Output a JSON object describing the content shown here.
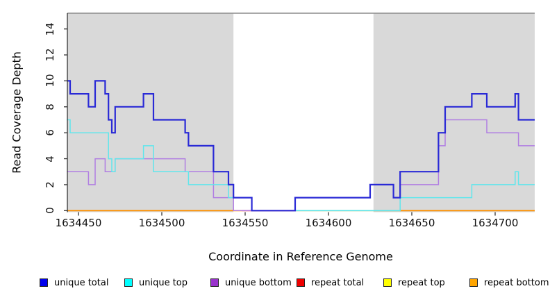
{
  "chart_data": {
    "type": "line",
    "subtype": "step",
    "title": "",
    "xlabel": "Coordinate in Reference Genome",
    "ylabel": "Read Coverage Depth",
    "xlim": [
      1634443,
      1634724
    ],
    "ylim": [
      0,
      15
    ],
    "x_ticks": [
      1634450,
      1634500,
      1634550,
      1634600,
      1634650,
      1634700
    ],
    "y_ticks": [
      0,
      2,
      4,
      6,
      8,
      10,
      12,
      14
    ],
    "grid": false,
    "legend_position": "bottom",
    "shaded_regions": [
      {
        "from": 1634443,
        "to": 1634543,
        "color": "#d9d9d9"
      },
      {
        "from": 1634627,
        "to": 1634724,
        "color": "#d9d9d9"
      }
    ],
    "series": [
      {
        "name": "unique total",
        "color": "#2a2ad6",
        "legend_color": "#0000ee",
        "line_width": 2.2,
        "draw": true,
        "steps": [
          [
            1634443,
            10
          ],
          [
            1634445,
            9
          ],
          [
            1634456,
            8
          ],
          [
            1634460,
            10
          ],
          [
            1634466,
            9
          ],
          [
            1634468,
            7
          ],
          [
            1634470,
            6
          ],
          [
            1634472,
            8
          ],
          [
            1634489,
            9
          ],
          [
            1634495,
            7
          ],
          [
            1634514,
            6
          ],
          [
            1634516,
            5
          ],
          [
            1634531,
            3
          ],
          [
            1634540,
            2
          ],
          [
            1634543,
            1
          ],
          [
            1634554,
            0
          ],
          [
            1634580,
            1
          ],
          [
            1634625,
            2
          ],
          [
            1634639,
            1
          ],
          [
            1634643,
            3
          ],
          [
            1634666,
            6
          ],
          [
            1634670,
            8
          ],
          [
            1634686,
            9
          ],
          [
            1634695,
            8
          ],
          [
            1634712,
            9
          ],
          [
            1634714,
            7
          ]
        ]
      },
      {
        "name": "unique top",
        "color": "#5fe6ec",
        "legend_color": "#00ffff",
        "line_width": 1.5,
        "draw": true,
        "steps": [
          [
            1634443,
            7
          ],
          [
            1634445,
            6
          ],
          [
            1634468,
            4
          ],
          [
            1634470,
            3
          ],
          [
            1634472,
            4
          ],
          [
            1634489,
            5
          ],
          [
            1634495,
            3
          ],
          [
            1634516,
            2
          ],
          [
            1634540,
            1
          ],
          [
            1634554,
            0
          ],
          [
            1634643,
            1
          ],
          [
            1634686,
            2
          ],
          [
            1634712,
            3
          ],
          [
            1634714,
            2
          ]
        ]
      },
      {
        "name": "unique bottom",
        "color": "#b07de2",
        "legend_color": "#9932cc",
        "line_width": 1.5,
        "draw": true,
        "steps": [
          [
            1634443,
            3
          ],
          [
            1634456,
            2
          ],
          [
            1634460,
            4
          ],
          [
            1634466,
            3
          ],
          [
            1634472,
            4
          ],
          [
            1634514,
            3
          ],
          [
            1634531,
            1
          ],
          [
            1634543,
            0
          ],
          [
            1634580,
            1
          ],
          [
            1634625,
            2
          ],
          [
            1634639,
            1
          ],
          [
            1634643,
            2
          ],
          [
            1634666,
            5
          ],
          [
            1634670,
            7
          ],
          [
            1634695,
            6
          ],
          [
            1634714,
            5
          ]
        ]
      },
      {
        "name": "repeat total",
        "color": "#e0455c",
        "legend_color": "#ee0000",
        "line_width": 1.8,
        "draw": false,
        "steps": [
          [
            1634443,
            0
          ]
        ]
      },
      {
        "name": "repeat top",
        "color": "#8fcc8f",
        "legend_color": "#ffff00",
        "line_width": 1.8,
        "draw": false,
        "steps": [
          [
            1634443,
            0
          ]
        ]
      },
      {
        "name": "repeat bottom",
        "color": "#ff9100",
        "legend_color": "#ffa500",
        "line_width": 1.8,
        "draw": false,
        "steps": [
          [
            1634443,
            0
          ]
        ]
      }
    ],
    "baseline_segments": [
      {
        "from": 1634443,
        "to": 1634548,
        "color": "#ff9100",
        "series": "repeat bottom"
      },
      {
        "from": 1634548,
        "to": 1634580,
        "color": "#e0455c",
        "series": "repeat total"
      },
      {
        "from": 1634580,
        "to": 1634643,
        "color": "#8fcc8f",
        "series": "repeat top"
      },
      {
        "from": 1634643,
        "to": 1634724,
        "color": "#ff9100",
        "series": "repeat bottom"
      }
    ]
  }
}
